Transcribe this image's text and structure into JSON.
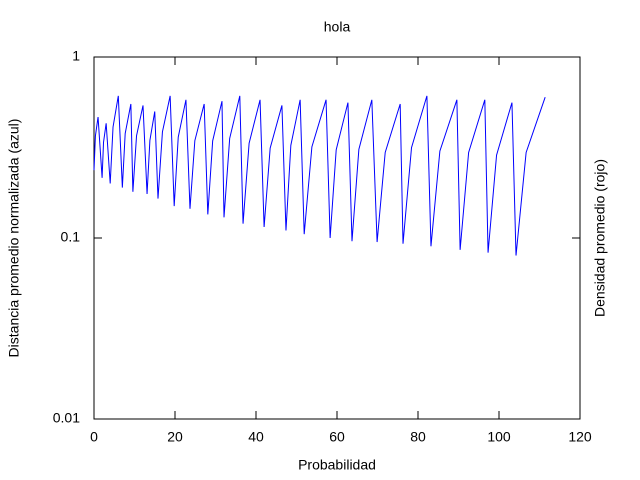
{
  "chart_data": {
    "type": "line",
    "title": "hola",
    "xlabel": "Probabilidad",
    "ylabel": "Distancia promedio normalizada (azul)",
    "y2label": "Densidad promedio (rojo)",
    "log_y": true,
    "xlim": [
      0,
      120
    ],
    "xticks": [
      0,
      20,
      40,
      60,
      80,
      100,
      120
    ],
    "ylim": [
      0.01,
      1
    ],
    "yticks": [
      0.01,
      0.1,
      1
    ],
    "series": [
      {
        "color": "#0000ff",
        "x": [
          0,
          0.35,
          1,
          2,
          2.35,
          3,
          4,
          4.7,
          6,
          7,
          7.7,
          9.1,
          9.6,
          10.5,
          12.1,
          13.1,
          13.8,
          15,
          15.8,
          16.9,
          18.8,
          19.8,
          20.8,
          22.7,
          23.7,
          24.9,
          27.2,
          28.1,
          29.3,
          31.6,
          32.1,
          33.5,
          36,
          36.8,
          38.3,
          41,
          42,
          43.5,
          46.4,
          47.4,
          48.6,
          50.9,
          51.9,
          53.8,
          57.3,
          58.3,
          59.8,
          62.7,
          63.7,
          65.4,
          68.6,
          69.9,
          71.9,
          75.6,
          76.3,
          78.4,
          82.2,
          83.2,
          85.4,
          89.6,
          90.4,
          92.5,
          96.5,
          97.3,
          99.4,
          103.2,
          104.2,
          106.7,
          111.4
        ],
        "values": [
          0.237,
          0.367,
          0.466,
          0.215,
          0.338,
          0.43,
          0.2,
          0.41,
          0.61,
          0.19,
          0.378,
          0.55,
          0.18,
          0.367,
          0.54,
          0.175,
          0.346,
          0.5,
          0.165,
          0.386,
          0.61,
          0.15,
          0.361,
          0.58,
          0.145,
          0.345,
          0.55,
          0.135,
          0.344,
          0.57,
          0.13,
          0.355,
          0.61,
          0.12,
          0.334,
          0.58,
          0.115,
          0.314,
          0.54,
          0.11,
          0.325,
          0.58,
          0.105,
          0.319,
          0.58,
          0.1,
          0.307,
          0.56,
          0.096,
          0.309,
          0.58,
          0.095,
          0.297,
          0.55,
          0.093,
          0.316,
          0.61,
          0.09,
          0.302,
          0.58,
          0.086,
          0.297,
          0.58,
          0.083,
          0.287,
          0.56,
          0.08,
          0.297,
          0.6
        ]
      }
    ]
  }
}
